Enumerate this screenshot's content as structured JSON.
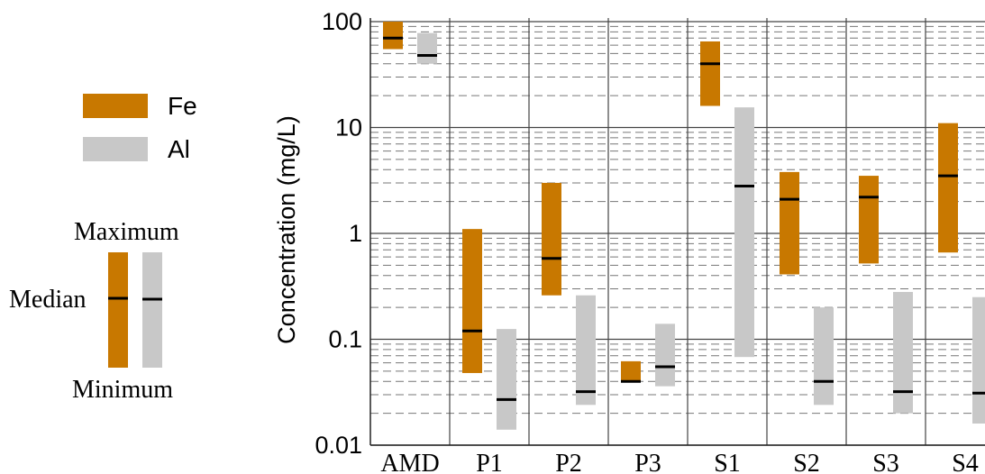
{
  "chart_data": {
    "type": "range-bar",
    "ylabel": "Concentration (mg/L)",
    "yscale": "log",
    "ylim": [
      0.01,
      100
    ],
    "ytick_labels": [
      "0.01",
      "0.1",
      "1",
      "10",
      "100"
    ],
    "ytick_values": [
      0.01,
      0.1,
      1,
      10,
      100
    ],
    "grid": true,
    "categories": [
      "AMD",
      "P1",
      "P2",
      "P3",
      "S1",
      "S2",
      "S3",
      "S4"
    ],
    "series": [
      {
        "name": "Fe",
        "color": "#c87800",
        "min": [
          55,
          0.048,
          0.26,
          0.04,
          16,
          0.41,
          0.52,
          0.66
        ],
        "median": [
          70,
          0.12,
          0.58,
          0.04,
          40,
          2.1,
          2.2,
          3.5
        ],
        "max": [
          100,
          1.1,
          3.0,
          0.062,
          65,
          3.8,
          3.5,
          11
        ]
      },
      {
        "name": "Al",
        "color": "#c8c8c8",
        "min": [
          40,
          0.014,
          0.024,
          0.036,
          0.068,
          0.024,
          0.02,
          0.016
        ],
        "median": [
          48,
          0.027,
          0.032,
          0.055,
          2.8,
          0.04,
          0.032,
          0.031
        ],
        "max": [
          78,
          0.125,
          0.26,
          0.14,
          15.5,
          0.2,
          0.28,
          0.25
        ]
      }
    ],
    "legend": {
      "position": "left",
      "items": [
        "Fe",
        "Al"
      ],
      "key_labels": {
        "max": "Maximum",
        "median": "Median",
        "min": "Minimum"
      }
    }
  }
}
